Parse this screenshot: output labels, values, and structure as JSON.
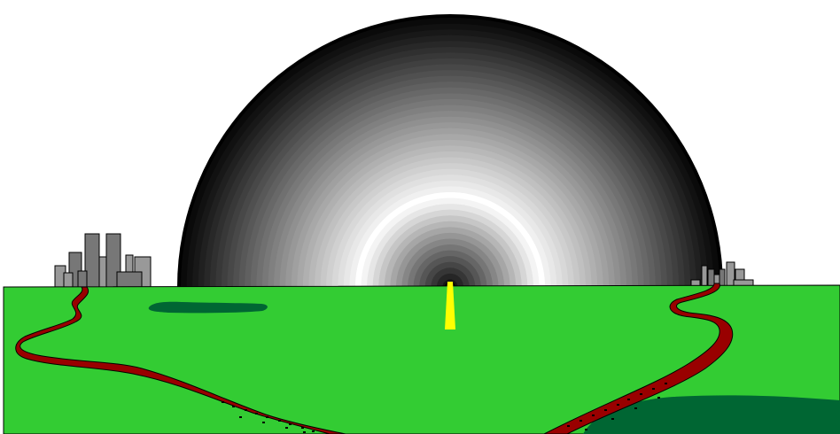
{
  "scene": {
    "colors": {
      "sky": "#ffffff",
      "grass": "#33cc33",
      "grass_outline": "#000000",
      "pond": "#006633",
      "road": "#990000",
      "road_outline": "#000000",
      "beam": "#ffff00",
      "building_light": "#999999",
      "building_dark": "#777777",
      "building_outline": "#000000",
      "dome_outer": "#000000",
      "dome_core": "#000000"
    },
    "dome": {
      "ring_shades_outer_to_inner": [
        "#0a0a0a",
        "#111111",
        "#181818",
        "#202020",
        "#282828",
        "#303030",
        "#383838",
        "#404040",
        "#484848",
        "#505050",
        "#585858",
        "#606060",
        "#686868",
        "#707070",
        "#787878",
        "#808080",
        "#888888",
        "#909090",
        "#989898",
        "#a0a0a0",
        "#a8a8a8",
        "#b0b0b0",
        "#b8b8b8",
        "#c0c0c0",
        "#c8c8c8",
        "#d0d0d0",
        "#d8d8d8",
        "#e0e0e0",
        "#e8e8e8",
        "#f0f0f0",
        "#ffffff",
        "#f4f4f4",
        "#e6e6e6",
        "#d6d6d6",
        "#c6c6c6",
        "#b6b6b6",
        "#a6a6a6",
        "#969696",
        "#868686",
        "#767676",
        "#666666",
        "#565656",
        "#464646",
        "#363636",
        "#262626",
        "#161616"
      ]
    }
  }
}
